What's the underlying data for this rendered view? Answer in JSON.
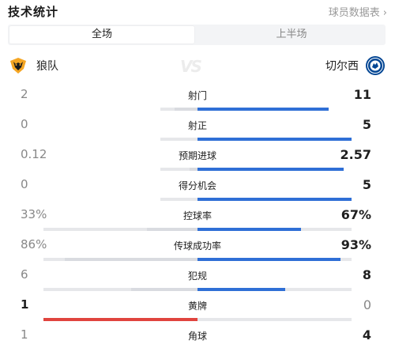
{
  "header": {
    "title": "技术统计",
    "db_link": "球员数据表",
    "db_link_chevron": "›"
  },
  "tabs": [
    {
      "label": "全场",
      "active": true
    },
    {
      "label": "上半场",
      "active": false
    }
  ],
  "teams": {
    "home": {
      "name": "狼队",
      "crest_icon": "wolves-crest-icon"
    },
    "away": {
      "name": "切尔西",
      "crest_icon": "chelsea-crest-icon"
    },
    "vs_text": "VS"
  },
  "colors": {
    "away_bar": "#2f6fd6",
    "home_bar": "#d9dbe0",
    "home_highlight_bar": "#e0443e",
    "track": "#e6e7ea"
  },
  "stats": [
    {
      "label": "射门",
      "home": "2",
      "away": "11",
      "home_fill": 0.15,
      "away_fill": 0.85,
      "home_max": 0.24,
      "away_max": 0.76
    },
    {
      "label": "射正",
      "home": "0",
      "away": "5",
      "home_fill": 0.0,
      "away_fill": 1.0,
      "home_max": 0.24,
      "away_max": 0.76
    },
    {
      "label": "预期进球",
      "home": "0.12",
      "away": "2.57",
      "home_fill": 0.05,
      "away_fill": 0.95,
      "home_max": 0.24,
      "away_max": 0.76
    },
    {
      "label": "得分机会",
      "home": "0",
      "away": "5",
      "home_fill": 0.0,
      "away_fill": 1.0,
      "home_max": 0.24,
      "away_max": 0.76
    },
    {
      "label": "控球率",
      "home": "33%",
      "away": "67%",
      "home_fill": 0.33,
      "away_fill": 0.67,
      "home_max": 1.0,
      "away_max": 1.0
    },
    {
      "label": "传球成功率",
      "home": "86%",
      "away": "93%",
      "home_fill": 0.86,
      "away_fill": 0.93,
      "home_max": 1.0,
      "away_max": 1.0
    },
    {
      "label": "犯规",
      "home": "6",
      "away": "8",
      "home_fill": 0.43,
      "away_fill": 0.57,
      "home_max": 1.0,
      "away_max": 1.0
    },
    {
      "label": "黄牌",
      "home": "1",
      "away": "0",
      "home_fill": 1.0,
      "away_fill": 0.0,
      "home_max": 1.0,
      "away_max": 1.0,
      "leader": "home"
    },
    {
      "label": "角球",
      "home": "1",
      "away": "4",
      "home_fill": 0.2,
      "away_fill": 0.8,
      "home_max": 1.0,
      "away_max": 1.0
    }
  ]
}
